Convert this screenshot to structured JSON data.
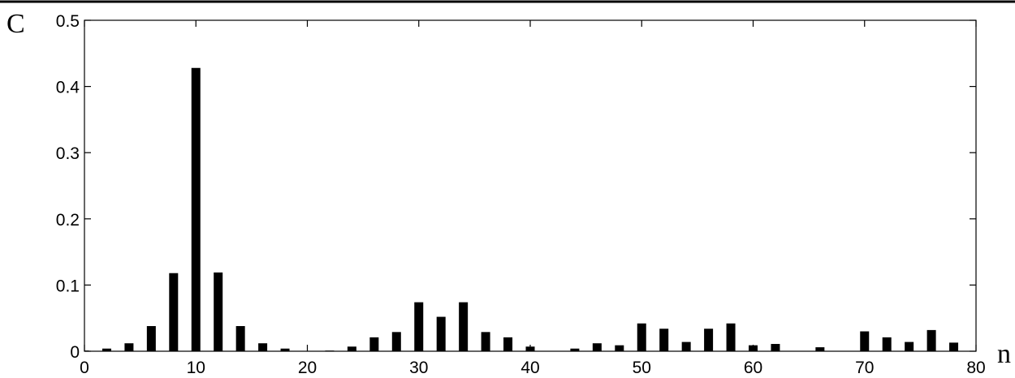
{
  "chart_data": {
    "type": "bar",
    "ylabel": "C",
    "xlabel": "n",
    "xlim": [
      0,
      80
    ],
    "ylim": [
      0,
      0.5
    ],
    "xticks": [
      0,
      10,
      20,
      30,
      40,
      50,
      60,
      70,
      80
    ],
    "yticks": [
      0,
      0.1,
      0.2,
      0.3,
      0.4,
      0.5
    ],
    "xtick_labels": [
      "0",
      "10",
      "20",
      "30",
      "40",
      "50",
      "60",
      "70",
      "80"
    ],
    "ytick_labels": [
      "0",
      "0.1",
      "0.2",
      "0.3",
      "0.4",
      "0.5"
    ],
    "grid": false,
    "bar_color": "#000000",
    "x": [
      0,
      2,
      4,
      6,
      8,
      10,
      12,
      14,
      16,
      18,
      20,
      22,
      24,
      26,
      28,
      30,
      32,
      34,
      36,
      38,
      40,
      42,
      44,
      46,
      48,
      50,
      52,
      54,
      56,
      58,
      60,
      62,
      64,
      66,
      68,
      70,
      72,
      74,
      76,
      78
    ],
    "values": [
      0.001,
      0.004,
      0.012,
      0.038,
      0.118,
      0.428,
      0.119,
      0.038,
      0.012,
      0.004,
      0.0,
      0.001,
      0.007,
      0.021,
      0.029,
      0.074,
      0.052,
      0.074,
      0.029,
      0.021,
      0.007,
      0.0,
      0.004,
      0.012,
      0.009,
      0.042,
      0.034,
      0.014,
      0.034,
      0.042,
      0.009,
      0.011,
      0.0,
      0.006,
      0.0,
      0.03,
      0.021,
      0.014,
      0.032,
      0.013
    ]
  }
}
